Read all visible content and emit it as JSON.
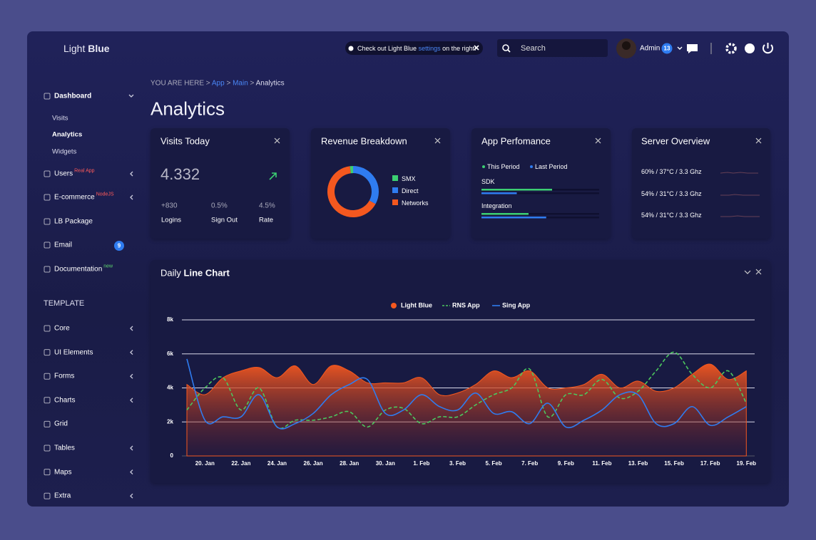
{
  "brand": {
    "light": "Light",
    "bold": "Blue"
  },
  "notice": {
    "text": "Check out Light Blue",
    "link": "settings",
    "rest": "on the right!"
  },
  "search": {
    "placeholder": "Search"
  },
  "user": {
    "name": "Admin",
    "badge": "13"
  },
  "sidebar": {
    "dashboard": {
      "label": "Dashboard",
      "children": [
        "Visits",
        "Analytics",
        "Widgets"
      ]
    },
    "items": [
      {
        "label": "Users",
        "tag": "Real App"
      },
      {
        "label": "E-commerce",
        "tag": "NodeJS"
      },
      {
        "label": "LB Package"
      },
      {
        "label": "Email",
        "badge": "9"
      },
      {
        "label": "Documentation",
        "tag": "new"
      }
    ],
    "section": "TEMPLATE",
    "template": [
      "Core",
      "UI Elements",
      "Forms",
      "Charts",
      "Grid",
      "Tables",
      "Maps",
      "Extra"
    ]
  },
  "breadcrumb": {
    "label": "YOU ARE HERE",
    "items": [
      "App",
      "Main",
      "Analytics"
    ]
  },
  "page_title": "Analytics",
  "visits": {
    "title": "Visits Today",
    "value": "4.332",
    "stats": [
      {
        "value": "+830",
        "label": "Logins"
      },
      {
        "value": "0.5%",
        "label": "Sign Out"
      },
      {
        "value": "4.5%",
        "label": "Rate"
      }
    ]
  },
  "performance": {
    "title": "App Perfomance",
    "legend": [
      {
        "name": "This Period",
        "color": "#3ccf72"
      },
      {
        "name": "Last Period",
        "color": "#2f7cf0"
      }
    ],
    "rows": [
      {
        "label": "SDK",
        "values": [
          60,
          30
        ]
      },
      {
        "label": "Integration",
        "values": [
          40,
          55
        ]
      }
    ]
  },
  "server": {
    "title": "Server Overview",
    "rows": [
      "60% / 37°C / 3.3 Ghz",
      "54% / 31°C / 3.3 Ghz",
      "54% / 31°C / 3.3 Ghz"
    ]
  },
  "chart_data": [
    {
      "type": "pie",
      "title": "Revenue Breakdown",
      "donut": true,
      "categories": [
        "SMX",
        "Direct",
        "Networks"
      ],
      "values": [
        2,
        33,
        65
      ],
      "colors": [
        "#3ccf72",
        "#2f7cf0",
        "#f4581f"
      ]
    },
    {
      "type": "line",
      "title": "Daily",
      "title_bold": "Line Chart",
      "categories": [
        null,
        "20. Jan",
        null,
        "22. Jan",
        null,
        "24. Jan",
        null,
        "26. Jan",
        null,
        "28. Jan",
        null,
        "30. Jan",
        null,
        "1. Feb",
        null,
        "3. Feb",
        null,
        "5. Feb",
        null,
        "7. Feb",
        null,
        "9. Feb",
        null,
        "11. Feb",
        null,
        "13. Feb",
        null,
        "15. Feb",
        null,
        "17. Feb",
        null,
        "19. Feb"
      ],
      "ylim": [
        0,
        8000
      ],
      "yticks": [
        0,
        {
          "value": 2000,
          "label": "2k"
        },
        {
          "value": 4000,
          "label": "4k"
        },
        {
          "value": 6000,
          "label": "6k"
        },
        {
          "value": 8000,
          "label": "8k"
        }
      ],
      "grid": true,
      "series": [
        {
          "name": "Light Blue",
          "color": "#f4581f",
          "fill": true,
          "values": [
            4200,
            3600,
            4600,
            5000,
            5200,
            4600,
            5300,
            4200,
            5300,
            5000,
            4300,
            4300,
            4300,
            4600,
            3600,
            3700,
            4200,
            5000,
            4600,
            5000,
            4000,
            4000,
            4200,
            4800,
            4000,
            4400,
            3800,
            4000,
            4800,
            5400,
            4500,
            5000
          ]
        },
        {
          "name": "RNS App",
          "color": "#4cc85e",
          "dash": true,
          "values": [
            2700,
            4000,
            4600,
            2700,
            4000,
            1700,
            2100,
            2100,
            2300,
            2600,
            1700,
            2700,
            2800,
            1900,
            2300,
            2300,
            3000,
            3600,
            4000,
            5100,
            2300,
            3600,
            3600,
            4500,
            3400,
            3800,
            5000,
            6100,
            4800,
            4000,
            5000,
            3100
          ]
        },
        {
          "name": "Sing App",
          "color": "#2f7cf0",
          "values": [
            5700,
            2100,
            2300,
            2300,
            3600,
            1700,
            1900,
            2500,
            3600,
            4200,
            4500,
            2500,
            2700,
            3600,
            2900,
            2700,
            3700,
            2500,
            2600,
            1900,
            3100,
            1700,
            2100,
            2700,
            3600,
            3600,
            1900,
            1900,
            2900,
            1800,
            2300,
            2900
          ]
        }
      ]
    }
  ]
}
